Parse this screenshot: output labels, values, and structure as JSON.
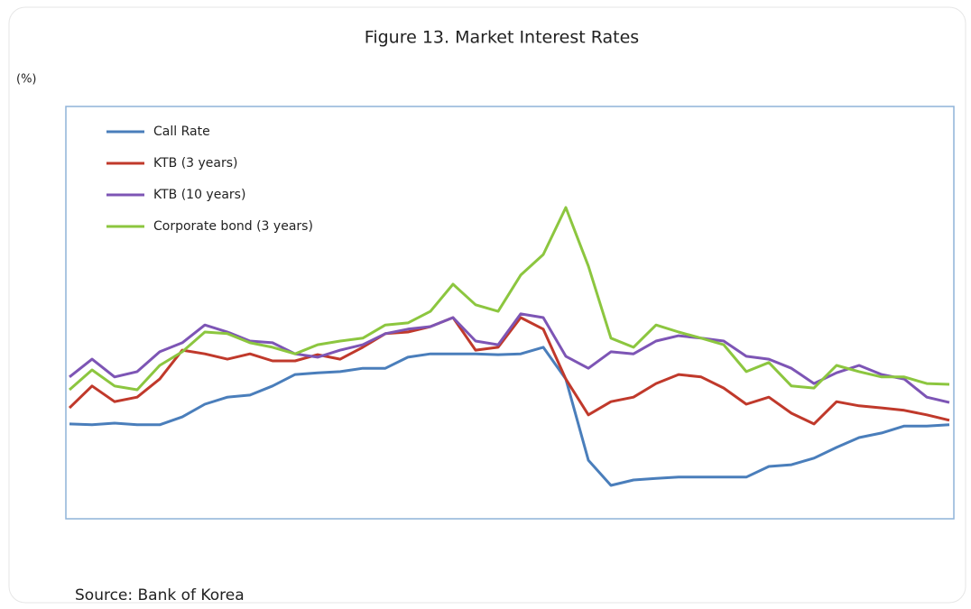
{
  "chart_data": {
    "type": "line",
    "title": "Figure 13. Market Interest Rates",
    "y_label": "(%)",
    "source": "Source: Bank of Korea",
    "ylim": [
      1,
      11
    ],
    "legend": "top-left",
    "series": [
      {
        "name": "Call Rate",
        "color": "#4a7ebb",
        "values": [
          3.3,
          3.28,
          3.32,
          3.28,
          3.28,
          3.47,
          3.78,
          3.95,
          4.0,
          4.22,
          4.5,
          4.54,
          4.57,
          4.65,
          4.65,
          4.92,
          5.0,
          5.0,
          5.0,
          4.98,
          5.0,
          5.16,
          4.39,
          2.42,
          1.81,
          1.94,
          1.98,
          2.01,
          2.01,
          2.01,
          2.01,
          2.27,
          2.31,
          2.47,
          2.73,
          2.97,
          3.08,
          3.25,
          3.25,
          3.28
        ]
      },
      {
        "name": "KTB (3 years)",
        "color": "#c0392b",
        "values": [
          3.69,
          4.22,
          3.84,
          3.95,
          4.39,
          5.09,
          5.0,
          4.87,
          5.0,
          4.83,
          4.83,
          4.98,
          4.87,
          5.16,
          5.49,
          5.53,
          5.66,
          5.88,
          5.09,
          5.16,
          5.88,
          5.6,
          4.39,
          3.52,
          3.84,
          3.95,
          4.28,
          4.5,
          4.44,
          4.17,
          3.78,
          3.95,
          3.56,
          3.3,
          3.84,
          3.74,
          3.69,
          3.63,
          3.52,
          3.39
        ]
      },
      {
        "name": "KTB (10 years)",
        "color": "#7d55b5",
        "values": [
          4.44,
          4.87,
          4.44,
          4.57,
          5.05,
          5.27,
          5.7,
          5.53,
          5.31,
          5.27,
          5.0,
          4.92,
          5.09,
          5.22,
          5.49,
          5.6,
          5.66,
          5.88,
          5.31,
          5.22,
          5.97,
          5.88,
          4.94,
          4.65,
          5.05,
          5.0,
          5.31,
          5.44,
          5.38,
          5.31,
          4.94,
          4.87,
          4.65,
          4.28,
          4.54,
          4.72,
          4.5,
          4.39,
          3.95,
          3.82
        ]
      },
      {
        "name": "Corporate bond (3 years)",
        "color": "#8cc63f",
        "values": [
          4.13,
          4.61,
          4.22,
          4.13,
          4.72,
          5.05,
          5.53,
          5.49,
          5.27,
          5.16,
          5.0,
          5.22,
          5.31,
          5.38,
          5.7,
          5.75,
          6.03,
          6.69,
          6.19,
          6.03,
          6.91,
          7.41,
          8.55,
          7.13,
          5.38,
          5.16,
          5.7,
          5.53,
          5.38,
          5.22,
          4.57,
          4.79,
          4.22,
          4.17,
          4.72,
          4.57,
          4.44,
          4.44,
          4.28,
          4.26
        ]
      }
    ]
  }
}
